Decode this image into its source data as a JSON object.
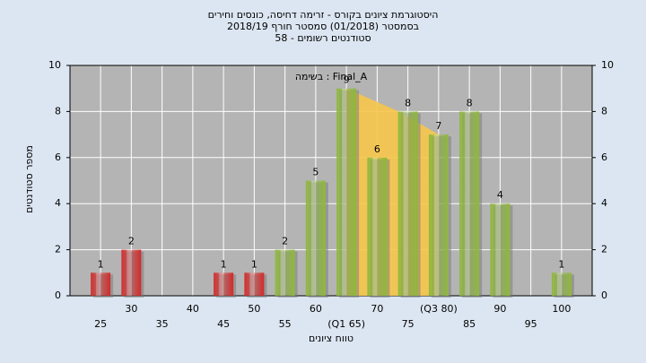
{
  "chart_data": {
    "type": "bar",
    "title": [
      "היסטוגרמת ציונים בקורס - זרימה דחיסה, כונסים וחירים",
      "בסמסטר  (01/2018)  סמסטר חורף 2018/19",
      "סטודנטים רשומים - 58"
    ],
    "annotation": "בשימה : Final_A",
    "xlabel": "טווח ציונים",
    "ylabel": "מספר סטודנטים",
    "categories": [
      "25",
      "30",
      "35",
      "40",
      "45",
      "50",
      "55",
      "60",
      "(Q1 65)",
      "70",
      "75",
      "(Q3 80)",
      "85",
      "90",
      "95",
      "100"
    ],
    "values": [
      1,
      2,
      null,
      null,
      1,
      1,
      2,
      5,
      9,
      6,
      8,
      7,
      8,
      4,
      null,
      1
    ],
    "colors": [
      "#d42a2a",
      "#d42a2a",
      "#d42a2a",
      "#d42a2a",
      "#d42a2a",
      "#d42a2a",
      "#8fb83c",
      "#8fb83c",
      "#8fb83c",
      "#8fb83c",
      "#8fb83c",
      "#8fb83c",
      "#8fb83c",
      "#8fb83c",
      "#8fb83c",
      "#8fb83c"
    ],
    "ylim": [
      0,
      10
    ],
    "yticks": [
      0,
      2,
      4,
      6,
      8,
      10
    ],
    "y2lim": [
      0,
      10
    ],
    "y2ticks": [
      0,
      2,
      4,
      6,
      8,
      10
    ],
    "grid": true
  }
}
